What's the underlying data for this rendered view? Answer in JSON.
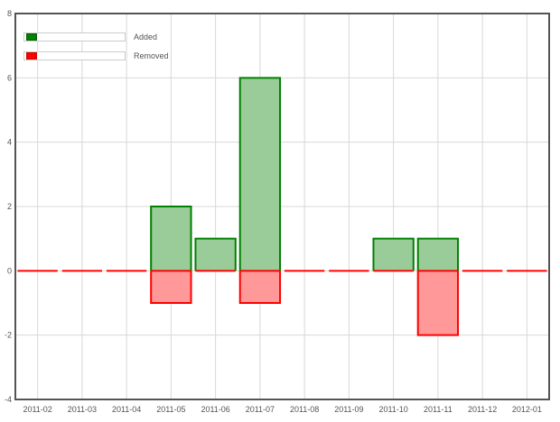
{
  "chart_data": {
    "type": "bar",
    "categories": [
      "2011-02",
      "2011-03",
      "2011-04",
      "2011-05",
      "2011-06",
      "2011-07",
      "2011-08",
      "2011-09",
      "2011-10",
      "2011-11",
      "2011-12",
      "2012-01"
    ],
    "series": [
      {
        "name": "Added",
        "values": [
          0,
          0,
          0,
          2,
          1,
          6,
          0,
          0,
          1,
          1,
          0,
          0
        ],
        "color": "#008000",
        "fill": "#99cc99"
      },
      {
        "name": "Removed",
        "values": [
          0,
          0,
          0,
          -1,
          0,
          -1,
          0,
          0,
          0,
          -2,
          0,
          0
        ],
        "color": "#ff0000",
        "fill": "#ff9999"
      }
    ],
    "ylim": [
      -4,
      8
    ],
    "yticks": [
      -4,
      -2,
      0,
      2,
      4,
      6,
      8
    ],
    "grid": true,
    "legend_position": "top-left",
    "stacked": true
  }
}
